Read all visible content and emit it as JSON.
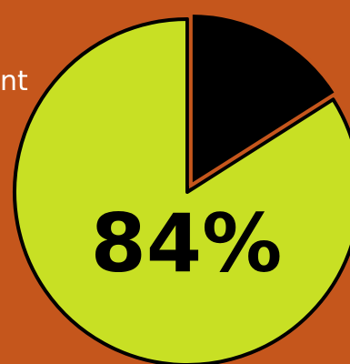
{
  "background_color": "#c5561c",
  "cut_off_text": "nt",
  "colors": {
    "major_slice": "#c8e024",
    "minor_slice": "#000000",
    "outline": "#000000",
    "label": "#000000"
  },
  "chart_data": {
    "type": "pie",
    "title": "",
    "slices": [
      {
        "label": "",
        "value": 84
      },
      {
        "label": "",
        "value": 16
      }
    ],
    "data_label": "84%",
    "minor_slice_exploded": true
  }
}
